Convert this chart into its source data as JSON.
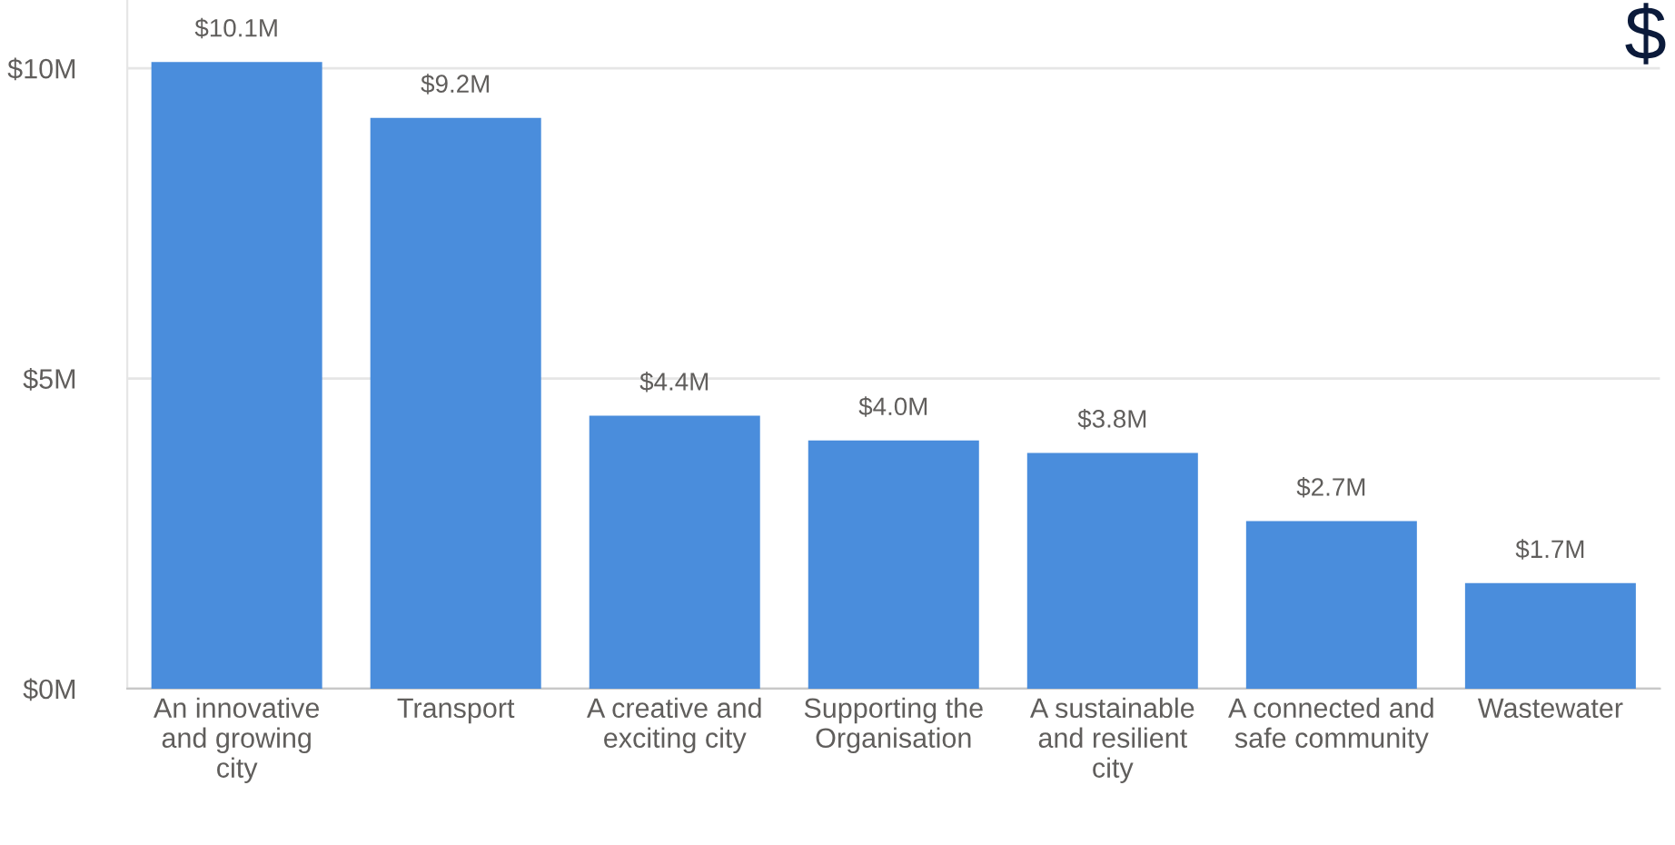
{
  "chart_data": {
    "type": "bar",
    "categories": [
      "An innovative and growing city",
      "Transport",
      "A creative and exciting city",
      "Supporting the Organisation",
      "A sustainable and resilient city",
      "A connected and safe community",
      "Wastewater"
    ],
    "values": [
      10.1,
      9.2,
      4.4,
      4.0,
      3.8,
      2.7,
      1.7
    ],
    "value_labels": [
      "$10.1M",
      "$9.2M",
      "$4.4M",
      "$4.0M",
      "$3.8M",
      "$2.7M",
      "$1.7M"
    ],
    "color": "#4a8ddc",
    "ylim": [
      0,
      11.1
    ],
    "yticks": [
      {
        "value": 0,
        "label": "$0M"
      },
      {
        "value": 5,
        "label": "$5M"
      },
      {
        "value": 10,
        "label": "$10M"
      }
    ],
    "grid": "y",
    "legend": false,
    "annotations": [
      "$"
    ]
  }
}
